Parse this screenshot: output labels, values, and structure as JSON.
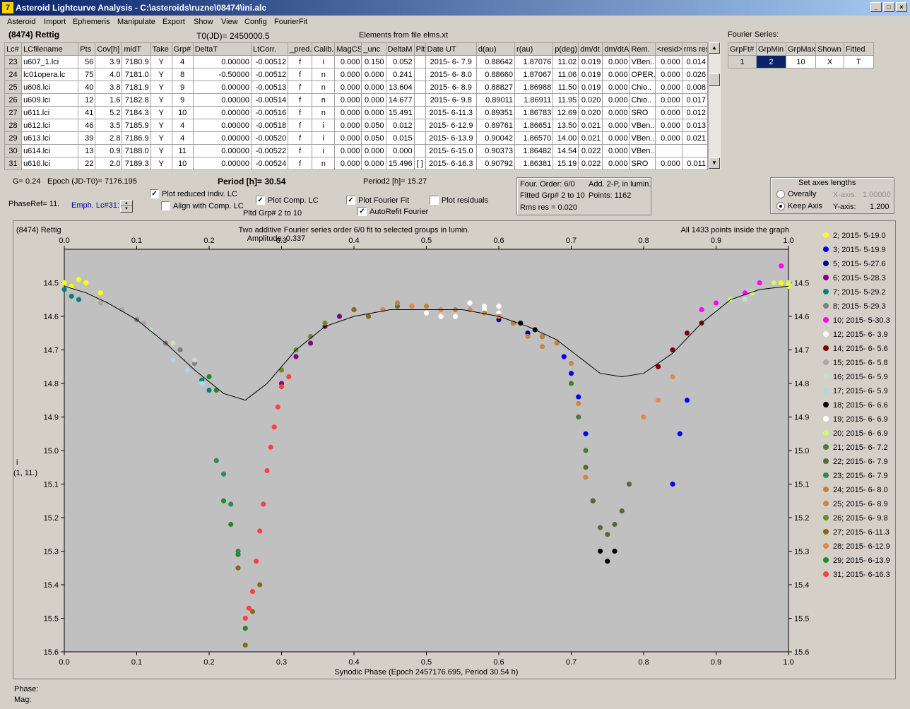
{
  "window": {
    "title": "Asteroid Lightcurve Analysis - C:\\asteroids\\ruzne\\08474\\ini.alc",
    "icon": "app-icon",
    "buttons": [
      "_",
      "□",
      "×"
    ]
  },
  "menu": [
    "Asteroid",
    "Import",
    "Ephemeris",
    "Manipulate",
    "Export",
    "Show",
    "View",
    "Config",
    "FourierFit"
  ],
  "header": {
    "asteroid": "(8474) Rettig",
    "t0": "T0(JD)= 2450000.5",
    "elements": "Elements from file elms.xt"
  },
  "table": {
    "columns": [
      "Lc#",
      "LCfilename",
      "Pts",
      "Cov[h]",
      "midT",
      "Take",
      "Grp#",
      "DeltaT",
      "LtCorr.",
      "_pred.",
      "Calib.",
      "MagCS",
      "_unc",
      "DeltaM",
      "Plt",
      "Date UT",
      "d(au)",
      "r(au)",
      "p(deg)",
      "dm/dt",
      "dm/dtA",
      "Rem.",
      "<resid>",
      "rms res"
    ],
    "rows": [
      [
        "23",
        "u607_1.lci",
        "56",
        "3.9",
        "7180.9",
        "Y",
        "4",
        "0.00000",
        "-0.00512",
        "f",
        "i",
        "0.000",
        "0.150",
        "0.052",
        "",
        "2015- 6- 7.9",
        "0.88642",
        "1.87076",
        "11.02",
        "0.019",
        "0.000",
        "VBen..",
        "0.000",
        "0.014"
      ],
      [
        "24",
        "lc01opera.lc",
        "75",
        "4.0",
        "7181.0",
        "Y",
        "8",
        "-0.50000",
        "-0.00512",
        "f",
        "n",
        "0.000",
        "0.000",
        "0.241",
        "",
        "2015- 6- 8.0",
        "0.88660",
        "1.87067",
        "11.06",
        "0.019",
        "0.000",
        "OPER..",
        "0.000",
        "0.026"
      ],
      [
        "25",
        "u608.lci",
        "40",
        "3.8",
        "7181.9",
        "Y",
        "9",
        "0.00000",
        "-0.00513",
        "f",
        "n",
        "0.000",
        "0.000",
        "13.604",
        "",
        "2015- 6- 8.9",
        "0.88827",
        "1.86988",
        "11.50",
        "0.019",
        "0.000",
        "Chio..",
        "0.000",
        "0.008"
      ],
      [
        "26",
        "u609.lci",
        "12",
        "1.6",
        "7182.8",
        "Y",
        "9",
        "0.00000",
        "-0.00514",
        "f",
        "n",
        "0.000",
        "0.000",
        "14.677",
        "",
        "2015- 6- 9.8",
        "0.89011",
        "1.86911",
        "11.95",
        "0.020",
        "0.000",
        "Chio..",
        "0.000",
        "0.017"
      ],
      [
        "27",
        "u611.lci",
        "41",
        "5.2",
        "7184.3",
        "Y",
        "10",
        "0.00000",
        "-0.00516",
        "f",
        "n",
        "0.000",
        "0.000",
        "15.491",
        "",
        "2015- 6-11.3",
        "0.89351",
        "1.86783",
        "12.69",
        "0.020",
        "0.000",
        "SRO",
        "0.000",
        "0.012"
      ],
      [
        "28",
        "u612.lci",
        "46",
        "3.5",
        "7185.9",
        "Y",
        "4",
        "0.00000",
        "-0.00518",
        "f",
        "i",
        "0.000",
        "0.050",
        "0.012",
        "",
        "2015- 6-12.9",
        "0.89761",
        "1.86651",
        "13.50",
        "0.021",
        "0.000",
        "VBen..",
        "0.000",
        "0.013"
      ],
      [
        "29",
        "u613.lci",
        "39",
        "2.8",
        "7186.9",
        "Y",
        "4",
        "0.00000",
        "-0.00520",
        "f",
        "i",
        "0.000",
        "0.050",
        "0.015",
        "",
        "2015- 6-13.9",
        "0.90042",
        "1.86570",
        "14.00",
        "0.021",
        "0.000",
        "VBen..",
        "0.000",
        "0.021"
      ],
      [
        "30",
        "u614.lci",
        "13",
        "0.9",
        "7188.0",
        "Y",
        "11",
        "0.00000",
        "-0.00522",
        "f",
        "i",
        "0.000",
        "0.000",
        "0.000",
        "",
        "2015- 6-15.0",
        "0.90373",
        "1.86482",
        "14.54",
        "0.022",
        "0.000",
        "VBen..",
        "",
        ""
      ],
      [
        "31",
        "u616.lci",
        "22",
        "2.0",
        "7189.3",
        "Y",
        "10",
        "0.00000",
        "-0.00524",
        "f",
        "n",
        "0.000",
        "0.000",
        "15.496",
        "[ ]",
        "2015- 6-16.3",
        "0.90792",
        "1.86381",
        "15.19",
        "0.022",
        "0.000",
        "SRO",
        "0.000",
        "0.011"
      ]
    ]
  },
  "fourier_series": {
    "title": "Fourier Series:",
    "columns": [
      "GrpFt#",
      "GrpMin",
      "GrpMax",
      "Shown",
      "Fitted"
    ],
    "row": [
      "1",
      "2",
      "10",
      "X",
      "T"
    ]
  },
  "controls": {
    "g": "G= 0.24",
    "epoch": "Epoch (JD-T0)= 7176.195",
    "period_label": "Period [h]= ",
    "period_value": "30.54",
    "period2": "Period2 [h]= 15.27",
    "phaseref": "PhaseRef= 11.",
    "emph": "Emph. Lc#31:",
    "plot_reduced": "Plot reduced indiv. LC",
    "align_comp": "Align with Comp. LC",
    "plot_comp": "Plot Comp. LC",
    "pltd_grp": "Pltd Grp#  2   to   10",
    "plot_fourier": "Plot Fourier Fit",
    "autorefit": "AutoRefit Fourier",
    "plot_residuals": "Plot residuals",
    "check_mark": "✓"
  },
  "fit_info": {
    "line1a": "Four. Order:  6/0",
    "line1b": "Add. 2-P, in lumin.",
    "line2a": "Fitted Grp# 2 to 10",
    "line2b": "Points: 1162",
    "line3": "Rms res    = 0.020"
  },
  "axes_panel": {
    "title": "Set axes lengths",
    "overally": "Overally",
    "keep_axis": "Keep Axis",
    "x_label": "X-axis:",
    "x_value": "1.00000",
    "y_label": "Y-axis:",
    "y_value": "1.200"
  },
  "plot": {
    "name": "(8474) Rettig",
    "title": "Two additive Fourier series order 6/0 fit to selected groups in lumin.",
    "amplitude": "Amplitude: 0.337",
    "inside": "All 1433 points inside the graph",
    "ylabel1": "i",
    "ylabel2": "(1, 11.)",
    "xlabel": "Synodic Phase (Epoch 2457176.695, Period 30.54 h)"
  },
  "chart_data": {
    "type": "scatter",
    "xlim": [
      0.0,
      1.0
    ],
    "ylim": [
      15.6,
      14.4
    ],
    "x_ticks": [
      "0.0",
      "0.1",
      "0.2",
      "0.3",
      "0.4",
      "0.5",
      "0.6",
      "0.7",
      "0.8",
      "0.9",
      "1.0"
    ],
    "y_ticks": [
      "14.5",
      "14.6",
      "14.7",
      "14.8",
      "14.9",
      "15.0",
      "15.1",
      "15.2",
      "15.3",
      "15.4",
      "15.5",
      "15.6"
    ],
    "grid": false,
    "legend_position": "right",
    "fit_curve": {
      "x": [
        0.0,
        0.03,
        0.06,
        0.1,
        0.14,
        0.18,
        0.22,
        0.25,
        0.28,
        0.32,
        0.36,
        0.4,
        0.45,
        0.5,
        0.55,
        0.6,
        0.64,
        0.68,
        0.71,
        0.74,
        0.77,
        0.8,
        0.84,
        0.88,
        0.92,
        0.96,
        1.0
      ],
      "y": [
        14.51,
        14.53,
        14.56,
        14.61,
        14.68,
        14.76,
        14.83,
        14.85,
        14.8,
        14.7,
        14.63,
        14.6,
        14.58,
        14.58,
        14.58,
        14.6,
        14.63,
        14.67,
        14.72,
        14.77,
        14.78,
        14.77,
        14.71,
        14.62,
        14.55,
        14.52,
        14.51
      ]
    },
    "series": [
      {
        "name": "2; 2015- 5-19.0",
        "color": "#ffff00",
        "x": [
          0.0,
          0.01,
          0.02,
          0.03,
          0.05,
          0.99,
          1.0
        ],
        "y": [
          14.5,
          14.51,
          14.49,
          14.5,
          14.53,
          14.5,
          14.51
        ]
      },
      {
        "name": "3; 2015- 5-19.9",
        "color": "#0000ff",
        "x": [
          0.69,
          0.7,
          0.71,
          0.72,
          0.84,
          0.85,
          0.86
        ],
        "y": [
          14.72,
          14.77,
          14.84,
          14.95,
          15.1,
          14.95,
          14.85
        ]
      },
      {
        "name": "5; 2015- 5-27.6",
        "color": "#000080",
        "x": [
          0.6,
          0.62,
          0.64,
          0.66
        ],
        "y": [
          14.61,
          14.62,
          14.65,
          14.66
        ]
      },
      {
        "name": "6; 2015- 5-28.3",
        "color": "#800080",
        "x": [
          0.3,
          0.32,
          0.34,
          0.36,
          0.38,
          0.4,
          0.42
        ],
        "y": [
          14.8,
          14.72,
          14.68,
          14.63,
          14.6,
          14.58,
          14.6
        ]
      },
      {
        "name": "7; 2015- 5-29.2",
        "color": "#008080",
        "x": [
          0.0,
          0.01,
          0.02,
          0.19,
          0.2
        ],
        "y": [
          14.52,
          14.54,
          14.55,
          14.79,
          14.82
        ]
      },
      {
        "name": "8; 2015- 5-29.3",
        "color": "#808080",
        "x": [
          0.1,
          0.12,
          0.14,
          0.16,
          0.18,
          0.2
        ],
        "y": [
          14.61,
          14.64,
          14.68,
          14.7,
          14.74,
          14.78
        ]
      },
      {
        "name": "10; 2015- 5-30.3",
        "color": "#ff00ff",
        "x": [
          0.88,
          0.9,
          0.92,
          0.94,
          0.96,
          0.98,
          0.99
        ],
        "y": [
          14.58,
          14.56,
          14.55,
          14.53,
          14.5,
          14.5,
          14.45
        ]
      },
      {
        "name": "12; 2015- 6- 3.9",
        "color": "#ffffff",
        "x": [
          0.5,
          0.52,
          0.54,
          0.56,
          0.58,
          0.6
        ],
        "y": [
          14.59,
          14.6,
          14.6,
          14.58,
          14.57,
          14.59
        ]
      },
      {
        "name": "14; 2015- 6- 5.6",
        "color": "#800000",
        "x": [
          0.82,
          0.84,
          0.86,
          0.88,
          0.9
        ],
        "y": [
          14.75,
          14.7,
          14.65,
          14.62,
          14.58
        ]
      },
      {
        "name": "15; 2015- 6- 5.8",
        "color": "#a9a9a9",
        "x": [
          0.05,
          0.08,
          0.11
        ],
        "y": [
          14.56,
          14.58,
          14.62
        ]
      },
      {
        "name": "16; 2015- 6- 5.9",
        "color": "#c0e0c0",
        "x": [
          0.12,
          0.15,
          0.18,
          0.9,
          0.94
        ],
        "y": [
          14.64,
          14.68,
          14.73,
          14.58,
          14.55
        ]
      },
      {
        "name": "17; 2015- 6- 5.9",
        "color": "#add8e6",
        "x": [
          0.15,
          0.17,
          0.19
        ],
        "y": [
          14.73,
          14.76,
          14.8
        ]
      },
      {
        "name": "18; 2015- 6- 6.6",
        "color": "#000000",
        "x": [
          0.63,
          0.65,
          0.73,
          0.74,
          0.75,
          0.76
        ],
        "y": [
          14.62,
          14.64,
          15.15,
          15.3,
          15.33,
          15.3
        ]
      },
      {
        "name": "19; 2015- 6- 6.9",
        "color": "#ffffff",
        "x": [
          0.56,
          0.58,
          0.6
        ],
        "y": [
          14.56,
          14.58,
          14.57
        ]
      },
      {
        "name": "20; 2015- 6- 6.9",
        "color": "#ccff66",
        "x": [
          0.92,
          0.95,
          0.98,
          1.0
        ],
        "y": [
          14.55,
          14.53,
          14.5,
          14.5
        ]
      },
      {
        "name": "21; 2015- 6- 7.2",
        "color": "#4a7a3a",
        "x": [
          0.44,
          0.46,
          0.48,
          0.7,
          0.71,
          0.72
        ],
        "y": [
          14.58,
          14.57,
          14.57,
          14.8,
          14.9,
          15.0
        ]
      },
      {
        "name": "22; 2015- 6- 7.9",
        "color": "#556b2f",
        "x": [
          0.72,
          0.73,
          0.74,
          0.75,
          0.76,
          0.77,
          0.78
        ],
        "y": [
          15.05,
          15.15,
          15.23,
          15.25,
          15.22,
          15.18,
          15.1
        ]
      },
      {
        "name": "23; 2015- 6- 7.9",
        "color": "#2e8b57",
        "x": [
          0.21,
          0.22,
          0.23,
          0.24
        ],
        "y": [
          15.03,
          15.07,
          15.16,
          15.3
        ]
      },
      {
        "name": "24; 2015- 6- 8.0",
        "color": "#c08040",
        "x": [
          0.46,
          0.5,
          0.54,
          0.58,
          0.62,
          0.66,
          0.68
        ],
        "y": [
          14.56,
          14.57,
          14.58,
          14.59,
          14.62,
          14.66,
          14.68
        ]
      },
      {
        "name": "25; 2015- 6- 8.9",
        "color": "#cd853f",
        "x": [
          0.64,
          0.66,
          0.7,
          0.71,
          0.72
        ],
        "y": [
          14.66,
          14.69,
          14.74,
          14.86,
          15.08
        ]
      },
      {
        "name": "26; 2015- 6- 9.8",
        "color": "#6b8e23",
        "x": [
          0.3,
          0.32,
          0.34,
          0.36
        ],
        "y": [
          14.76,
          14.7,
          14.66,
          14.62
        ]
      },
      {
        "name": "27; 2015- 6-11.3",
        "color": "#8b6914",
        "x": [
          0.24,
          0.25,
          0.26,
          0.27,
          0.4,
          0.42
        ],
        "y": [
          15.35,
          15.58,
          15.48,
          15.4,
          14.58,
          14.6
        ]
      },
      {
        "name": "28; 2015- 6-12.9",
        "color": "#e08850",
        "x": [
          0.44,
          0.48,
          0.52,
          0.56,
          0.6,
          0.8,
          0.82,
          0.84
        ],
        "y": [
          14.58,
          14.57,
          14.58,
          14.58,
          14.6,
          14.9,
          14.85,
          14.78
        ]
      },
      {
        "name": "29; 2015- 6-13.9",
        "color": "#228b22",
        "x": [
          0.2,
          0.21,
          0.22,
          0.23,
          0.24,
          0.25
        ],
        "y": [
          14.78,
          14.82,
          15.15,
          15.22,
          15.31,
          15.53
        ]
      },
      {
        "name": "31; 2015- 6-16.3",
        "color": "#ff4040",
        "x": [
          0.25,
          0.255,
          0.26,
          0.265,
          0.27,
          0.275,
          0.28,
          0.285,
          0.29,
          0.295,
          0.3,
          0.31
        ],
        "y": [
          15.5,
          15.47,
          15.42,
          15.33,
          15.24,
          15.16,
          15.06,
          14.99,
          14.93,
          14.87,
          14.81,
          14.78
        ]
      }
    ]
  }
}
